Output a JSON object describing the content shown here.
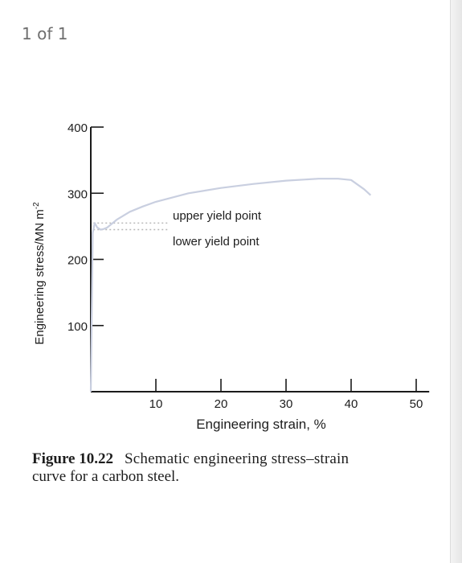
{
  "viewer": {
    "page_counter": "1 of 1"
  },
  "chart_data": {
    "type": "line",
    "xlabel": "Engineering strain, %",
    "ylabel": "Engineering stress/MN m",
    "ylabel_superscript": "-2",
    "x_ticks": [
      10,
      20,
      30,
      40,
      50
    ],
    "y_ticks": [
      100,
      200,
      300,
      400
    ],
    "xlim": [
      0,
      52
    ],
    "ylim": [
      0,
      400
    ],
    "series": [
      {
        "x": [
          0,
          0.3,
          0.6,
          1.0,
          1.5,
          2.0,
          2.5,
          4,
          6,
          8,
          10,
          15,
          20,
          25,
          30,
          35,
          38,
          40,
          42,
          43
        ],
        "y": [
          0,
          240,
          255,
          248,
          245,
          246,
          248,
          260,
          272,
          280,
          287,
          300,
          308,
          314,
          319,
          322,
          322,
          320,
          306,
          297
        ]
      }
    ],
    "annotations": [
      {
        "text": "upper yield point",
        "refers_to_y": 255
      },
      {
        "text": "lower yield point",
        "refers_to_y": 245
      }
    ],
    "colors": {
      "curve": "#c9cfe0",
      "axis": "#1a1a1a",
      "guide": "#b8b8b8"
    }
  },
  "caption": {
    "label": "Figure 10.22",
    "text_line1": "Schematic engineering stress–strain",
    "text_line2": "curve for a carbon steel."
  }
}
